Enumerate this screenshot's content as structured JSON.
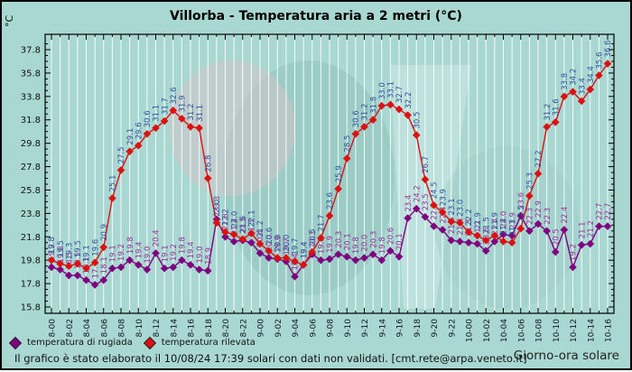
{
  "header": {
    "window_note": "static chart image"
  },
  "chart_data": {
    "type": "line",
    "title": "Villorba - Temperatura aria a 2 metri (°C)",
    "xlabel": "Giorno-ora solare",
    "ylabel": "°C",
    "ylim": [
      15.3,
      39.1
    ],
    "y_ticks": [
      15.8,
      17.8,
      19.8,
      21.8,
      23.8,
      25.8,
      27.8,
      29.8,
      31.8,
      33.8,
      35.8,
      37.8
    ],
    "x_tick_step": 2,
    "grid": "vertical-white-per-hour",
    "legend_position": "bottom-left",
    "background_color": "#a9d7d1",
    "grid_color": "#ffffff",
    "x": [
      "8-00",
      "8-01",
      "8-02",
      "8-03",
      "8-04",
      "8-05",
      "8-06",
      "8-07",
      "8-08",
      "8-09",
      "8-10",
      "8-11",
      "8-12",
      "8-13",
      "8-14",
      "8-15",
      "8-16",
      "8-17",
      "8-18",
      "8-19",
      "8-20",
      "8-21",
      "8-22",
      "8-23",
      "9-00",
      "9-01",
      "9-02",
      "9-03",
      "9-04",
      "9-05",
      "9-06",
      "9-07",
      "9-08",
      "9-09",
      "9-10",
      "9-11",
      "9-12",
      "9-13",
      "9-14",
      "9-15",
      "9-16",
      "9-17",
      "9-18",
      "9-19",
      "9-20",
      "9-21",
      "9-22",
      "9-23",
      "10-00",
      "10-01",
      "10-02",
      "10-03",
      "10-04",
      "10-05",
      "10-06",
      "10-07",
      "10-08",
      "10-09",
      "10-10",
      "10-11",
      "10-12",
      "10-13",
      "10-14",
      "10-15",
      "10-16"
    ],
    "series": [
      {
        "name": "temperatura di rugiada",
        "color": "#800080",
        "label_color": "#993399",
        "values": [
          19.2,
          19.0,
          18.5,
          18.5,
          18.1,
          17.7,
          18.1,
          19.1,
          19.2,
          19.8,
          19.4,
          19.0,
          20.4,
          19.1,
          19.2,
          19.8,
          19.4,
          19.0,
          18.9,
          23.3,
          21.8,
          21.4,
          21.5,
          21.3,
          20.4,
          20.0,
          19.9,
          19.7,
          18.4,
          19.4,
          20.3,
          19.8,
          19.9,
          20.3,
          20.1,
          19.8,
          20.0,
          20.3,
          19.8,
          20.6,
          20.1,
          23.4,
          24.2,
          23.5,
          22.7,
          22.4,
          21.5,
          21.4,
          21.3,
          21.2,
          20.6,
          21.4,
          22.0,
          21.9,
          23.6,
          22.3,
          22.9,
          22.3,
          20.5,
          22.4,
          19.2,
          21.1,
          21.2,
          22.7,
          22.7
        ]
      },
      {
        "name": "temperatura rilevata",
        "color": "#dd1111",
        "label_color": "#31519e",
        "values": [
          19.8,
          19.5,
          19.3,
          19.5,
          19.1,
          19.6,
          20.9,
          25.1,
          27.5,
          29.1,
          29.6,
          30.6,
          31.1,
          31.7,
          32.6,
          31.9,
          31.2,
          31.1,
          26.8,
          23.0,
          22.2,
          22.0,
          21.6,
          22.1,
          21.2,
          20.6,
          20.0,
          20.0,
          19.7,
          19.4,
          20.5,
          21.7,
          23.6,
          25.9,
          28.5,
          30.6,
          31.2,
          31.8,
          33.0,
          33.1,
          32.7,
          32.2,
          30.5,
          26.7,
          24.5,
          23.9,
          23.1,
          23.0,
          22.2,
          21.9,
          21.5,
          21.9,
          21.4,
          21.3,
          22.5,
          25.3,
          27.2,
          31.2,
          31.6,
          33.8,
          34.2,
          33.4,
          34.4,
          35.6,
          36.6
        ]
      }
    ]
  },
  "footer": {
    "elaboration": "Il grafico è stato elaborato il 10/08/24 17:39 solari con dati non validati. [cmt.rete@arpa.veneto.it]"
  }
}
